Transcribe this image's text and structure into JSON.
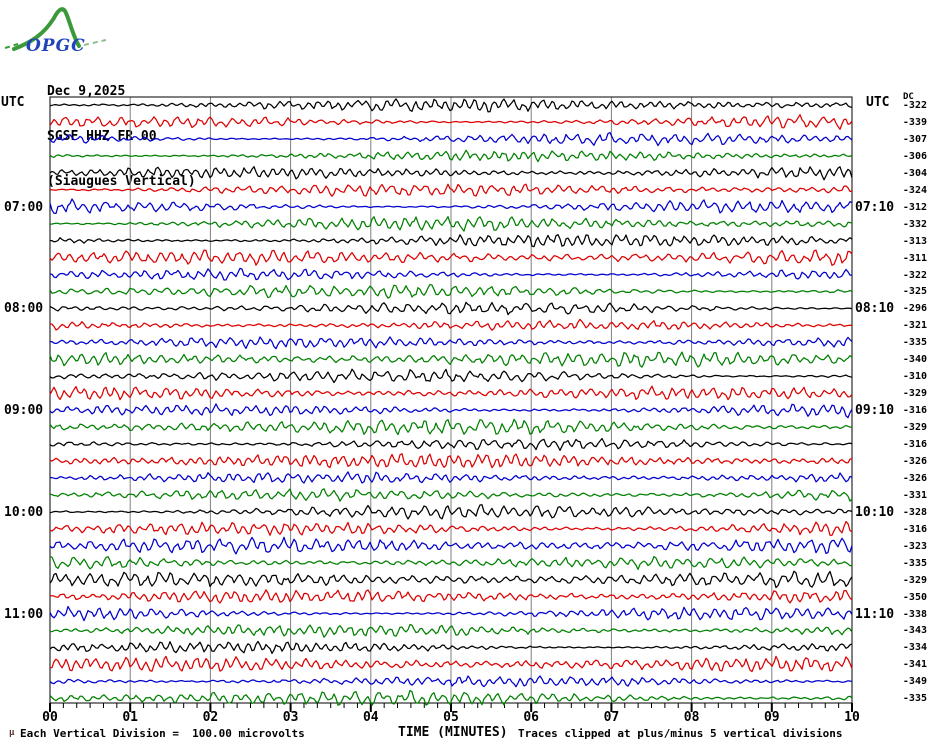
{
  "header": {
    "date": "Dec 9,2025",
    "station": "SGSF HHZ FR 00",
    "location": "(Siaugues Vertical)"
  },
  "logo": {
    "text": "OPGC"
  },
  "axis": {
    "utc_left": "UTC",
    "utc_right": "UTC",
    "dc_header": "DC",
    "x_title": "TIME (MINUTES)",
    "x_ticks": [
      "00",
      "01",
      "02",
      "03",
      "04",
      "05",
      "06",
      "07",
      "08",
      "09",
      "10"
    ]
  },
  "footer": {
    "left_mark": "µ",
    "scale_note": "Each Vertical Division =  100.00 microvolts",
    "clip_note": "Traces clipped at plus/minus 5 vertical divisions"
  },
  "chart_data": {
    "type": "line",
    "subtype": "helicorder-seismogram",
    "title": "SGSF HHZ FR 00 (Siaugues Vertical) Dec 9,2025",
    "xlabel": "TIME (MINUTES)",
    "x_range_minutes": [
      0,
      10
    ],
    "minor_ticks_per_minute": 6,
    "row_duration_minutes": 10,
    "start_time_utc": "06:00",
    "end_time_utc": "12:00",
    "grid": true,
    "colors": {
      "black": "#000000",
      "red": "#dd0000",
      "blue": "#0000cd",
      "green": "#008000",
      "grid": "#7f7f7f"
    },
    "left_hour_labels": [
      {
        "row": 6,
        "text": "07:00"
      },
      {
        "row": 12,
        "text": "08:00"
      },
      {
        "row": 18,
        "text": "09:00"
      },
      {
        "row": 24,
        "text": "10:00"
      },
      {
        "row": 30,
        "text": "11:00"
      }
    ],
    "right_hour_labels": [
      {
        "row": 6,
        "text": "07:10"
      },
      {
        "row": 12,
        "text": "08:10"
      },
      {
        "row": 18,
        "text": "09:10"
      },
      {
        "row": 24,
        "text": "10:10"
      },
      {
        "row": 30,
        "text": "11:10"
      }
    ],
    "rows": [
      {
        "start": "06:00",
        "color": "black",
        "dc": -322,
        "amp": 1.0
      },
      {
        "start": "06:10",
        "color": "red",
        "dc": -339,
        "amp": 1.05
      },
      {
        "start": "06:20",
        "color": "blue",
        "dc": -307,
        "amp": 1.0
      },
      {
        "start": "06:30",
        "color": "green",
        "dc": -306,
        "amp": 0.95
      },
      {
        "start": "06:40",
        "color": "black",
        "dc": -304,
        "amp": 1.0
      },
      {
        "start": "06:50",
        "color": "red",
        "dc": -324,
        "amp": 1.05
      },
      {
        "start": "07:00",
        "color": "blue",
        "dc": -312,
        "amp": 1.1
      },
      {
        "start": "07:10",
        "color": "green",
        "dc": -332,
        "amp": 1.15
      },
      {
        "start": "07:20",
        "color": "black",
        "dc": -313,
        "amp": 1.0
      },
      {
        "start": "07:30",
        "color": "red",
        "dc": -311,
        "amp": 0.95
      },
      {
        "start": "07:40",
        "color": "blue",
        "dc": -322,
        "amp": 1.0
      },
      {
        "start": "07:50",
        "color": "green",
        "dc": -325,
        "amp": 1.0
      },
      {
        "start": "08:00",
        "color": "black",
        "dc": -296,
        "amp": 1.05
      },
      {
        "start": "08:10",
        "color": "red",
        "dc": -321,
        "amp": 0.9
      },
      {
        "start": "08:20",
        "color": "blue",
        "dc": -335,
        "amp": 0.95
      },
      {
        "start": "08:30",
        "color": "green",
        "dc": -340,
        "amp": 1.0
      },
      {
        "start": "08:40",
        "color": "black",
        "dc": -310,
        "amp": 1.0
      },
      {
        "start": "08:50",
        "color": "red",
        "dc": -329,
        "amp": 0.95
      },
      {
        "start": "09:00",
        "color": "blue",
        "dc": -316,
        "amp": 1.05
      },
      {
        "start": "09:10",
        "color": "green",
        "dc": -329,
        "amp": 1.0
      },
      {
        "start": "09:20",
        "color": "black",
        "dc": -316,
        "amp": 1.0
      },
      {
        "start": "09:30",
        "color": "red",
        "dc": -326,
        "amp": 0.95
      },
      {
        "start": "09:40",
        "color": "blue",
        "dc": -326,
        "amp": 1.0
      },
      {
        "start": "09:50",
        "color": "green",
        "dc": -331,
        "amp": 1.05
      },
      {
        "start": "10:00",
        "color": "black",
        "dc": -328,
        "amp": 1.1
      },
      {
        "start": "10:10",
        "color": "red",
        "dc": -316,
        "amp": 1.25
      },
      {
        "start": "10:20",
        "color": "blue",
        "dc": -323,
        "amp": 1.1
      },
      {
        "start": "10:30",
        "color": "green",
        "dc": -335,
        "amp": 1.0
      },
      {
        "start": "10:40",
        "color": "black",
        "dc": -329,
        "amp": 1.05
      },
      {
        "start": "10:50",
        "color": "red",
        "dc": -350,
        "amp": 1.0
      },
      {
        "start": "11:00",
        "color": "blue",
        "dc": -338,
        "amp": 1.1
      },
      {
        "start": "11:10",
        "color": "green",
        "dc": -343,
        "amp": 1.15
      },
      {
        "start": "11:20",
        "color": "black",
        "dc": -334,
        "amp": 1.0
      },
      {
        "start": "11:30",
        "color": "red",
        "dc": -341,
        "amp": 0.95
      },
      {
        "start": "11:40",
        "color": "blue",
        "dc": -349,
        "amp": 1.0
      },
      {
        "start": "11:50",
        "color": "green",
        "dc": -335,
        "amp": 1.05
      }
    ]
  }
}
